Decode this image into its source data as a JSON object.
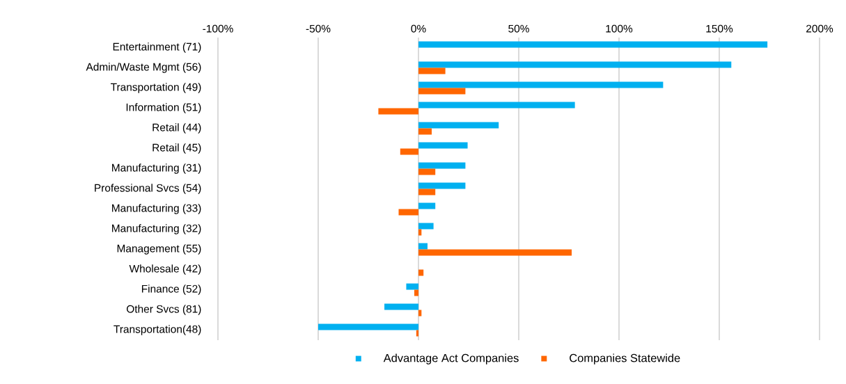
{
  "chart_data": {
    "type": "bar",
    "orientation": "horizontal",
    "categories": [
      "Entertainment (71)",
      "Admin/Waste Mgmt (56)",
      "Transportation (49)",
      "Information (51)",
      "Retail (44)",
      "Retail (45)",
      "Manufacturing (31)",
      "Professional Svcs (54)",
      "Manufacturing (33)",
      "Manufacturing (32)",
      "Management (55)",
      "Wholesale (42)",
      "Finance (52)",
      "Other Svcs (81)",
      "Transportation(48)"
    ],
    "series": [
      {
        "name": "Advantage Act Companies",
        "color": "#00b0f0",
        "values": [
          174,
          156,
          122,
          78,
          40,
          24.5,
          23.4,
          23.4,
          8.4,
          7.5,
          4.5,
          0,
          -6.1,
          -17,
          -50
        ]
      },
      {
        "name": "Companies Statewide",
        "color": "#ff6600",
        "values": [
          0,
          13.4,
          23.4,
          -20,
          6.6,
          -9.1,
          8.4,
          8.4,
          -9.9,
          1.5,
          76.4,
          2.5,
          -2.1,
          1.5,
          -1.1
        ]
      }
    ],
    "xlim": [
      -100,
      200
    ],
    "xticks": [
      {
        "value": -100,
        "label": "-100%"
      },
      {
        "value": -50,
        "label": "-50%"
      },
      {
        "value": 0,
        "label": "0%"
      },
      {
        "value": 50,
        "label": "50%"
      },
      {
        "value": 100,
        "label": "100%"
      },
      {
        "value": 150,
        "label": "150%"
      },
      {
        "value": 200,
        "label": "200%"
      }
    ],
    "grid": "x",
    "legend": "bottom"
  }
}
